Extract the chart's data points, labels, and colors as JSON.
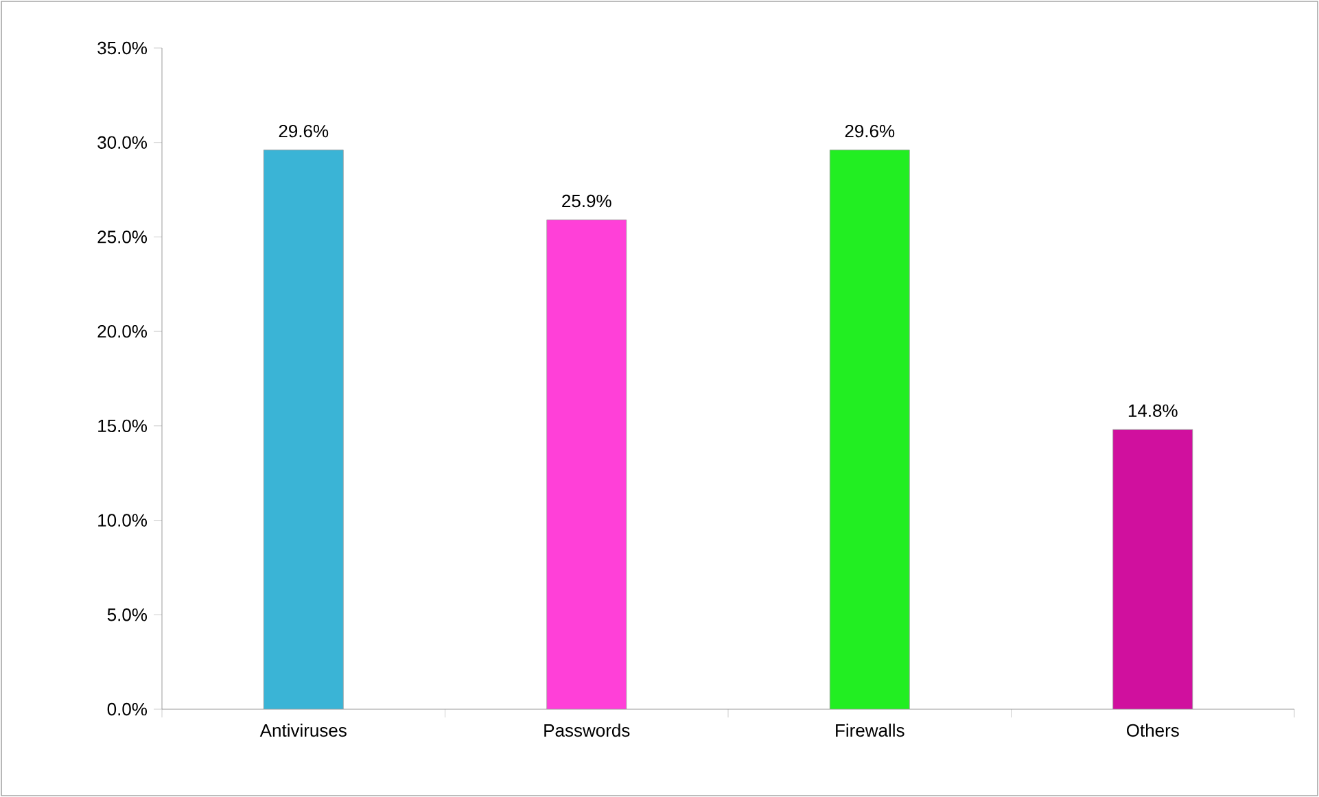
{
  "chart_data": {
    "type": "bar",
    "categories": [
      "Antiviruses",
      "Passwords",
      "Firewalls",
      "Others"
    ],
    "values": [
      29.6,
      25.9,
      29.6,
      14.8
    ],
    "colors": [
      "#3ab4d6",
      "#ff40d8",
      "#22ee22",
      "#d0109e"
    ],
    "value_labels": [
      "29.6%",
      "25.9%",
      "29.6%",
      "14.8%"
    ],
    "ylim": [
      0,
      35
    ],
    "yticks": [
      {
        "value": 0,
        "label": "0.0%"
      },
      {
        "value": 5,
        "label": "5.0%"
      },
      {
        "value": 10,
        "label": "10.0%"
      },
      {
        "value": 15,
        "label": "15.0%"
      },
      {
        "value": 20,
        "label": "20.0%"
      },
      {
        "value": 25,
        "label": "25.0%"
      },
      {
        "value": 30,
        "label": "30.0%"
      },
      {
        "value": 35,
        "label": "35.0%"
      }
    ]
  }
}
